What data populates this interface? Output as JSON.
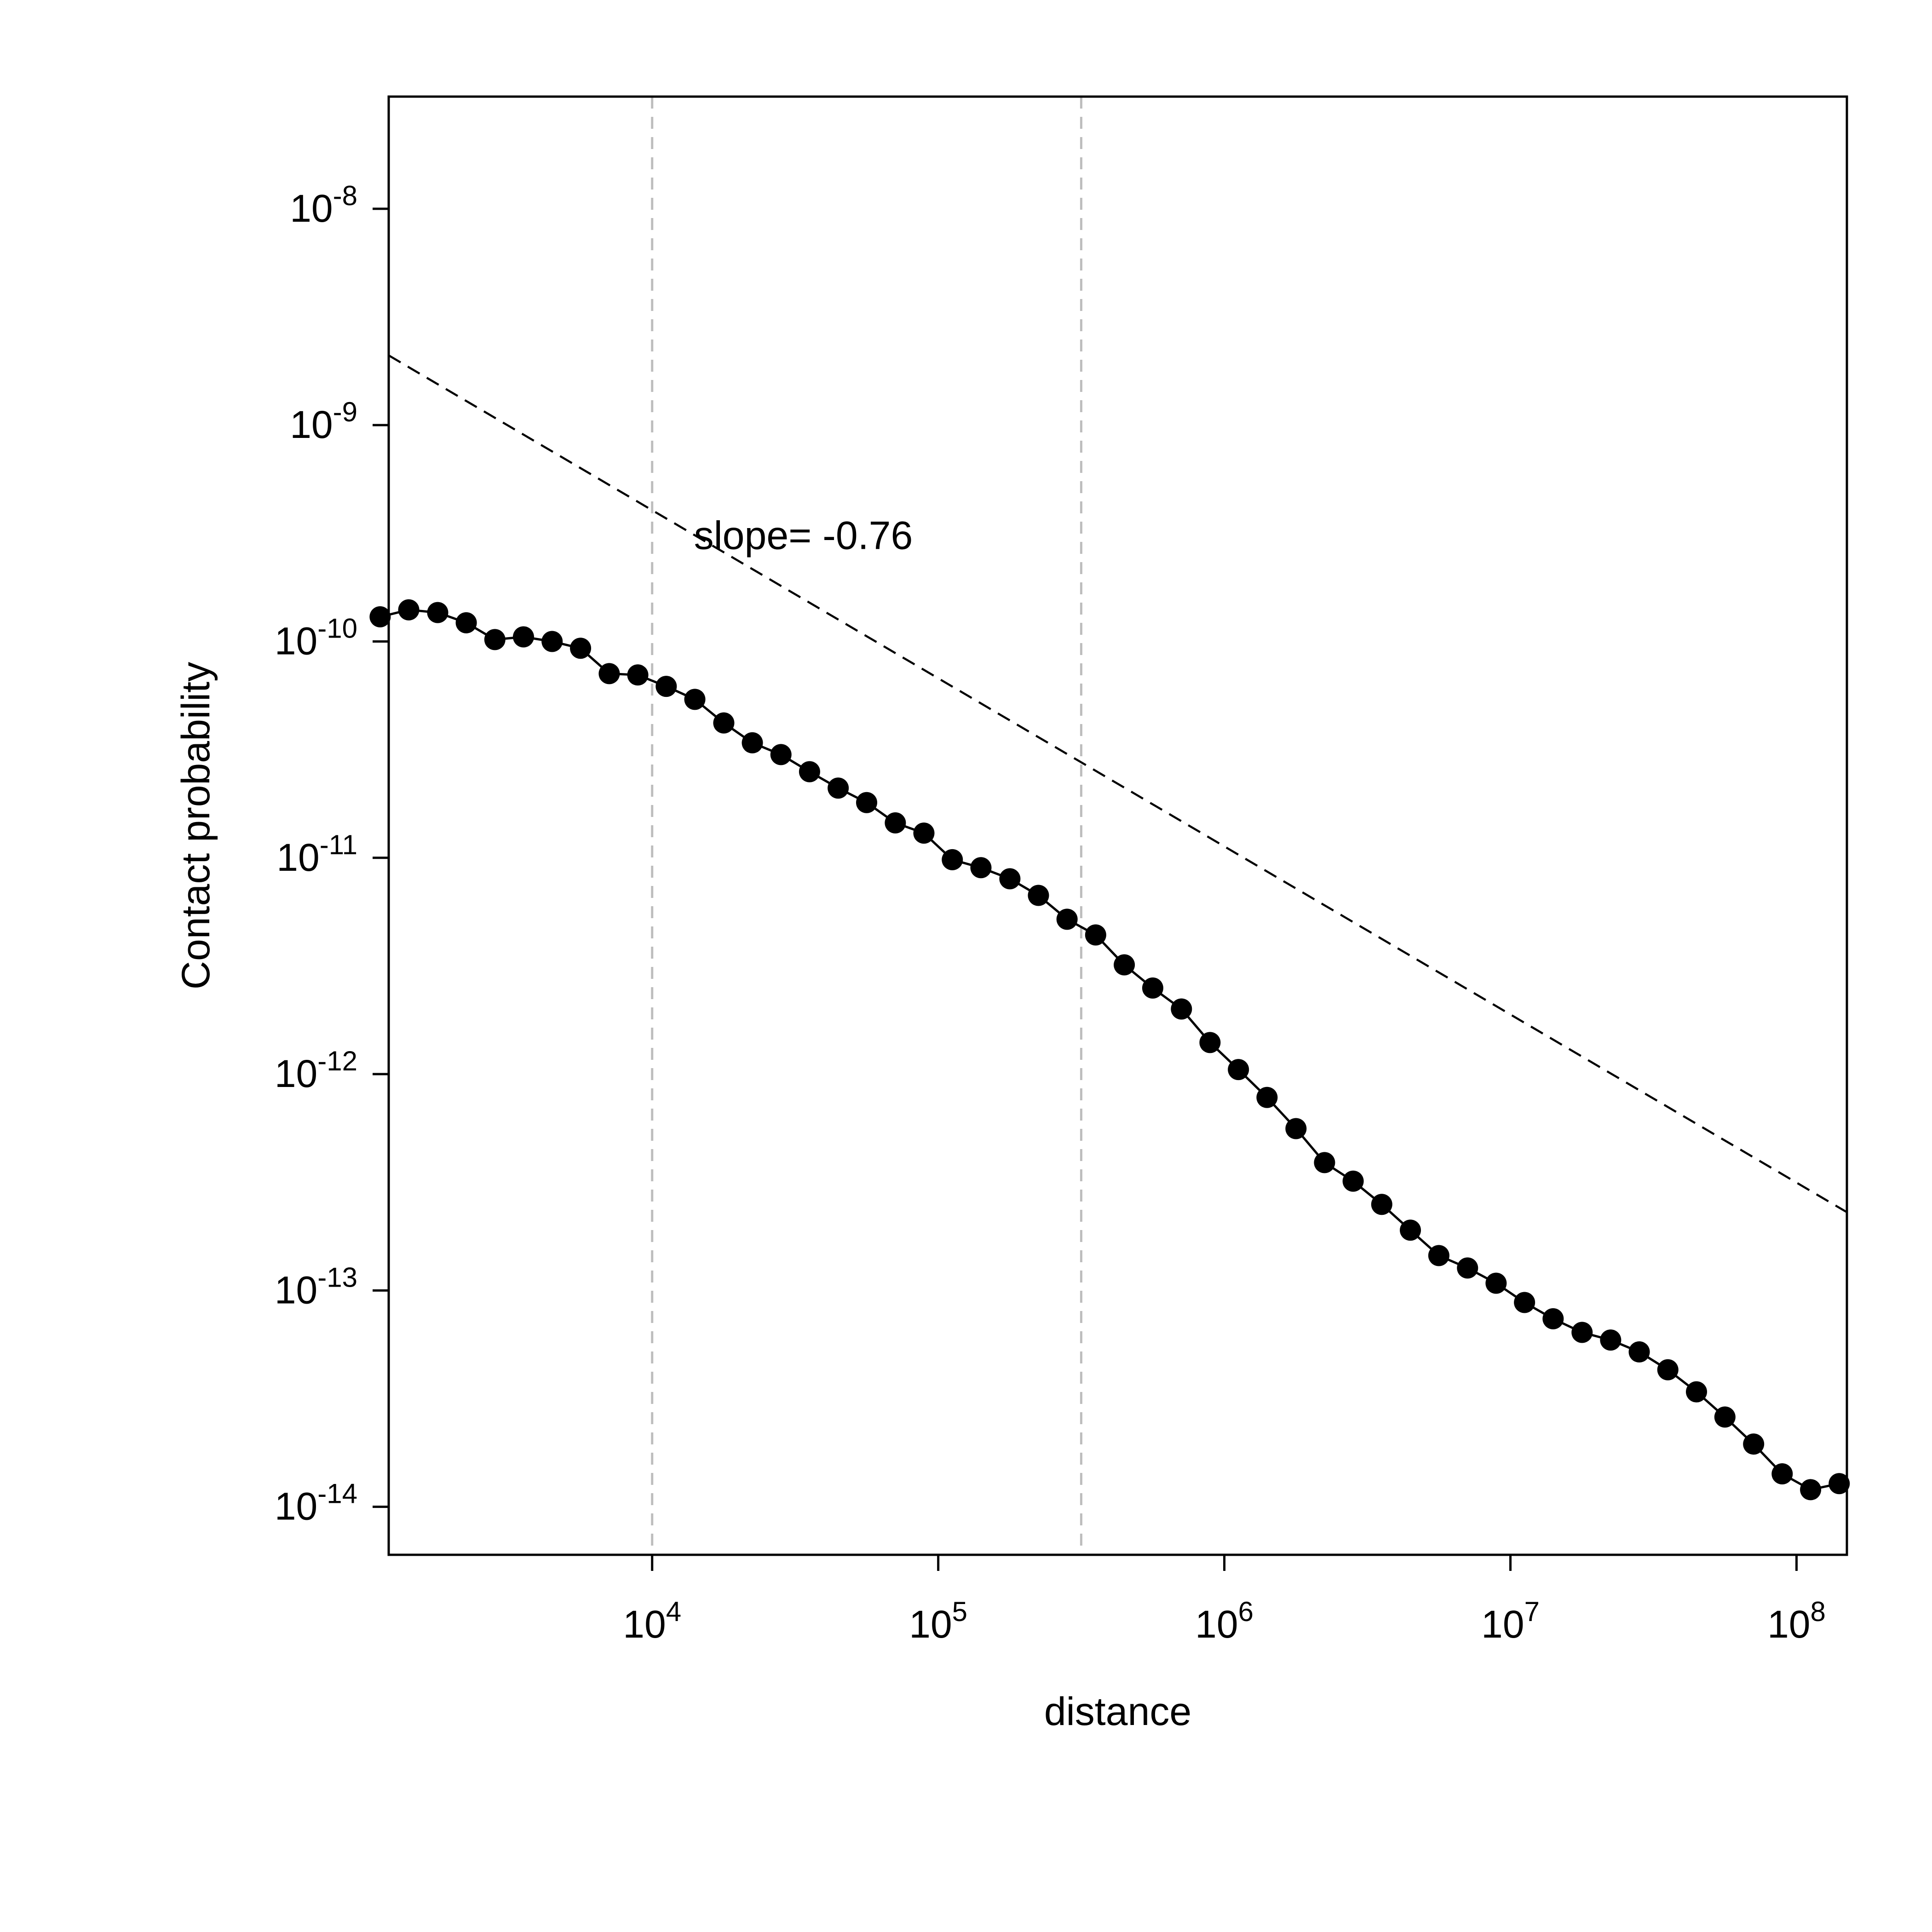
{
  "chart_data": {
    "type": "scatter",
    "xscale": "log",
    "yscale": "log",
    "xlabel": "distance",
    "ylabel": "Contact probability",
    "xlim": [
      1200,
      150000000
    ],
    "ylim": [
      6e-15,
      3.3e-08
    ],
    "x_ticks": [
      {
        "value": 10000,
        "base": "10",
        "exp": "4"
      },
      {
        "value": 100000,
        "base": "10",
        "exp": "5"
      },
      {
        "value": 1000000,
        "base": "10",
        "exp": "6"
      },
      {
        "value": 10000000,
        "base": "10",
        "exp": "7"
      },
      {
        "value": 100000000,
        "base": "10",
        "exp": "8"
      }
    ],
    "y_ticks": [
      {
        "value": 1e-08,
        "base": "10",
        "exp": "-8"
      },
      {
        "value": 1e-09,
        "base": "10",
        "exp": "-9"
      },
      {
        "value": 1e-10,
        "base": "10",
        "exp": "-10"
      },
      {
        "value": 1e-11,
        "base": "10",
        "exp": "-11"
      },
      {
        "value": 1e-12,
        "base": "10",
        "exp": "-12"
      },
      {
        "value": 1e-13,
        "base": "10",
        "exp": "-13"
      },
      {
        "value": 1e-14,
        "base": "10",
        "exp": "-14"
      }
    ],
    "vlines": [
      10000,
      316000
    ],
    "fit_line": {
      "slope": -0.76,
      "points": [
        [
          1200,
          2.1e-09
        ],
        [
          150000000,
          2.3e-13
        ]
      ]
    },
    "annotation": {
      "text": "slope= -0.76",
      "x": 14000,
      "y": 3.1e-10
    },
    "series": [
      {
        "x": [
          1120,
          1410,
          1780,
          2240,
          2820,
          3550,
          4470,
          5620,
          7080,
          8910,
          11200,
          14100,
          17800,
          22400,
          28200,
          35500,
          44700,
          56200,
          70800,
          89100,
          112000,
          141000,
          178000,
          224000,
          282000,
          355000,
          447000,
          562000,
          708000,
          891000,
          1120000,
          1410000,
          1780000,
          2240000,
          2820000,
          3550000,
          4470000,
          5620000,
          7080000,
          8910000,
          11200000,
          14100000,
          17800000,
          22400000,
          28200000,
          35500000,
          44700000,
          56200000,
          70800000,
          89100000,
          112000000,
          141000000
        ],
        "y": [
          1.3e-10,
          1.4e-10,
          1.36e-10,
          1.22e-10,
          1.02e-10,
          1.05e-10,
          1e-10,
          9.3e-11,
          7.1e-11,
          7e-11,
          6.2e-11,
          5.4e-11,
          4.2e-11,
          3.4e-11,
          3e-11,
          2.5e-11,
          2.1e-11,
          1.8e-11,
          1.45e-11,
          1.3e-11,
          9.8e-12,
          9e-12,
          8e-12,
          6.7e-12,
          5.2e-12,
          4.4e-12,
          3.2e-12,
          2.5e-12,
          2e-12,
          1.4e-12,
          1.05e-12,
          7.8e-13,
          5.6e-13,
          3.9e-13,
          3.2e-13,
          2.5e-13,
          1.9e-13,
          1.45e-13,
          1.27e-13,
          1.08e-13,
          8.8e-14,
          7.4e-14,
          6.4e-14,
          5.9e-14,
          5.2e-14,
          4.3e-14,
          3.4e-14,
          2.6e-14,
          1.95e-14,
          1.42e-14,
          1.2e-14,
          1.28e-14
        ]
      }
    ]
  }
}
